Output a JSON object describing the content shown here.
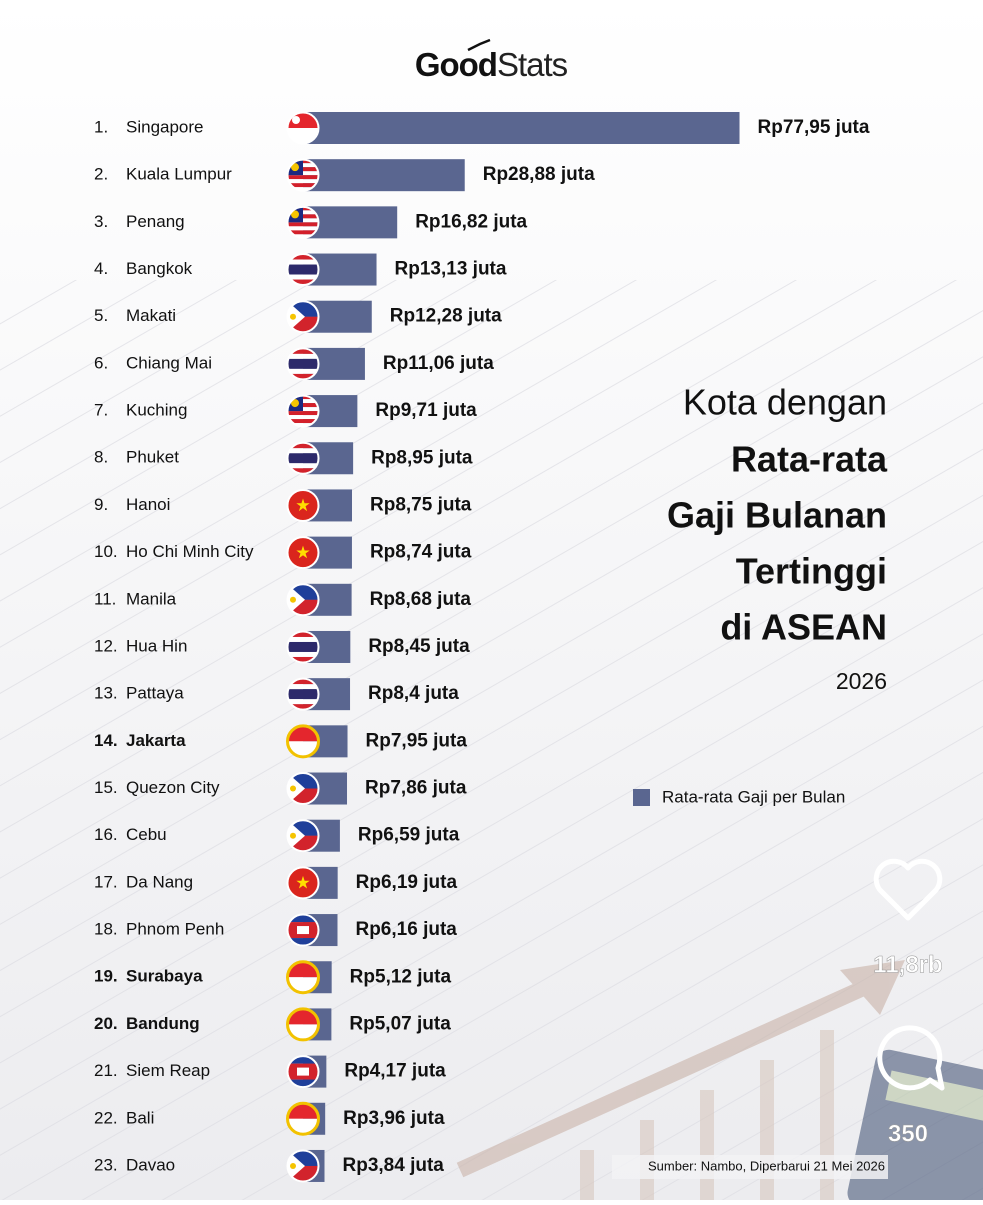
{
  "logo": [
    "Good",
    "Stats"
  ],
  "chart_data": {
    "type": "barh",
    "title": [
      "Kota dengan",
      "Rata-rata",
      "Gaji Bulanan",
      "Tertinggi",
      "di ASEAN"
    ],
    "subtitle": "2026",
    "ranks": [
      "1.",
      "2.",
      "3.",
      "4.",
      "5.",
      "6.",
      "7.",
      "8.",
      "9.",
      "10.",
      "11.",
      "12.",
      "13.",
      "14.",
      "15.",
      "16.",
      "17.",
      "18.",
      "19.",
      "20.",
      "21.",
      "22.",
      "23."
    ],
    "categories": [
      "Singapore",
      "Kuala Lumpur",
      "Penang",
      "Bangkok",
      "Makati",
      "Chiang Mai",
      "Kuching",
      "Phuket",
      "Hanoi",
      "Ho Chi Minh City",
      "Manila",
      "Hua Hin",
      "Pattaya",
      "Jakarta",
      "Quezon City",
      "Cebu",
      "Da Nang",
      "Phnom Penh",
      "Surabaya",
      "Bandung",
      "Siem Reap",
      "Bali",
      "Davao"
    ],
    "series": [
      {
        "name": "Rata-rata Gaji per Bulan",
        "color": "#5a6690",
        "values": [
          77.95,
          28.88,
          16.82,
          13.13,
          12.28,
          11.06,
          9.71,
          8.95,
          8.75,
          8.74,
          8.68,
          8.45,
          8.4,
          7.95,
          7.86,
          6.59,
          6.19,
          6.16,
          5.12,
          5.07,
          4.17,
          3.96,
          3.84
        ],
        "value_labels": [
          "Rp77,95 juta",
          "Rp28,88 juta",
          "Rp16,82 juta",
          "Rp13,13 juta",
          "Rp12,28 juta",
          "Rp11,06 juta",
          "Rp9,71 juta",
          "Rp8,95 juta",
          "Rp8,75 juta",
          "Rp8,74 juta",
          "Rp8,68 juta",
          "Rp8,45 juta",
          "Rp8,4 juta",
          "Rp7,95 juta",
          "Rp7,86 juta",
          "Rp6,59 juta",
          "Rp6,19 juta",
          "Rp6,16 juta",
          "Rp5,12 juta",
          "Rp5,07 juta",
          "Rp4,17 juta",
          "Rp3,96 juta",
          "Rp3,84 juta"
        ]
      }
    ],
    "xlim": [
      0,
      80
    ],
    "source": "Sumber: Nambo, Diperbarui 21 Mei 2026"
  },
  "overlay": {
    "likes": "11,8rb",
    "comments": "350"
  }
}
